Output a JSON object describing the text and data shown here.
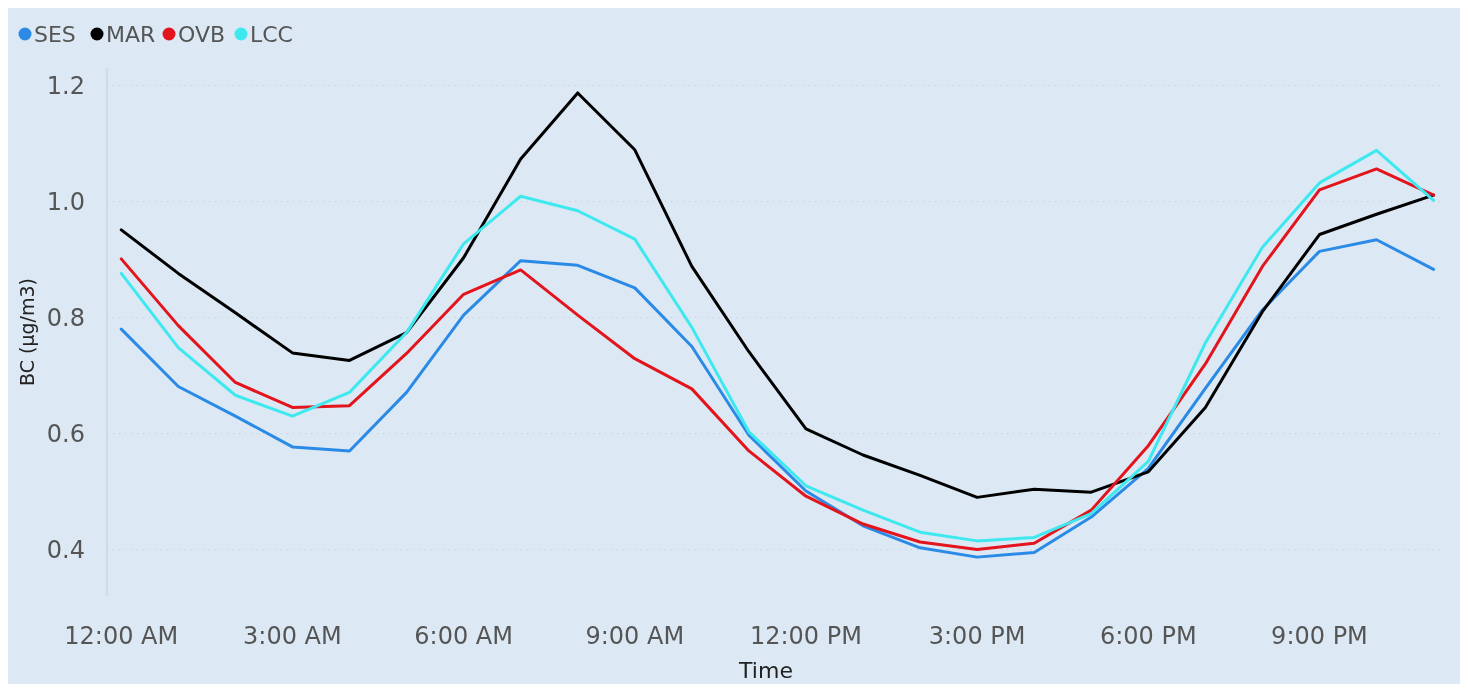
{
  "chart_data": {
    "type": "line",
    "xlabel": "Time",
    "ylabel": "BC (µg/m3)",
    "x": [
      0,
      1,
      2,
      3,
      4,
      5,
      6,
      7,
      8,
      9,
      10,
      11,
      12,
      13,
      14,
      15,
      16,
      17,
      18,
      19,
      20,
      21,
      22,
      23
    ],
    "xlim": [
      -0.25,
      23.2
    ],
    "xticks": [
      {
        "value": 0,
        "label": "12:00 AM"
      },
      {
        "value": 3,
        "label": "3:00 AM"
      },
      {
        "value": 6,
        "label": "6:00 AM"
      },
      {
        "value": 9,
        "label": "9:00 AM"
      },
      {
        "value": 12,
        "label": "12:00 PM"
      },
      {
        "value": 15,
        "label": "3:00 PM"
      },
      {
        "value": 18,
        "label": "6:00 PM"
      },
      {
        "value": 21,
        "label": "9:00 PM"
      }
    ],
    "ylim": [
      0.32,
      1.23
    ],
    "yticks": [
      {
        "value": 0.4,
        "label": "0.4"
      },
      {
        "value": 0.6,
        "label": "0.6"
      },
      {
        "value": 0.8,
        "label": "0.8"
      },
      {
        "value": 1.0,
        "label": "1.0"
      },
      {
        "value": 1.2,
        "label": "1.2"
      }
    ],
    "grid": "y",
    "legend": "top left",
    "marker": "none",
    "line_style": "solid",
    "series": [
      {
        "name": "SES",
        "color": "#2a8ae6",
        "values": [
          0.78,
          0.681,
          0.63,
          0.577,
          0.57,
          0.671,
          0.804,
          0.898,
          0.89,
          0.851,
          0.75,
          0.597,
          0.501,
          0.441,
          0.403,
          0.387,
          0.395,
          0.456,
          0.54,
          0.678,
          0.813,
          0.914,
          0.934,
          0.883
        ]
      },
      {
        "name": "MAR",
        "color": "#000000",
        "values": [
          0.951,
          0.876,
          0.808,
          0.739,
          0.726,
          0.774,
          0.903,
          1.073,
          1.187,
          1.089,
          0.888,
          0.741,
          0.608,
          0.563,
          0.528,
          0.49,
          0.504,
          0.499,
          0.534,
          0.645,
          0.81,
          0.943,
          0.978,
          1.011
        ]
      },
      {
        "name": "OVB",
        "color": "#e3141c",
        "values": [
          0.901,
          0.786,
          0.688,
          0.645,
          0.648,
          0.738,
          0.84,
          0.882,
          0.804,
          0.729,
          0.677,
          0.57,
          0.492,
          0.444,
          0.413,
          0.4,
          0.411,
          0.468,
          0.579,
          0.72,
          0.888,
          1.02,
          1.056,
          1.011
        ]
      },
      {
        "name": "LCC",
        "color": "#3ee8ef",
        "values": [
          0.876,
          0.748,
          0.666,
          0.63,
          0.671,
          0.774,
          0.927,
          1.009,
          0.984,
          0.935,
          0.783,
          0.603,
          0.51,
          0.468,
          0.43,
          0.415,
          0.421,
          0.462,
          0.552,
          0.756,
          0.921,
          1.032,
          1.088,
          1.002
        ]
      }
    ]
  }
}
